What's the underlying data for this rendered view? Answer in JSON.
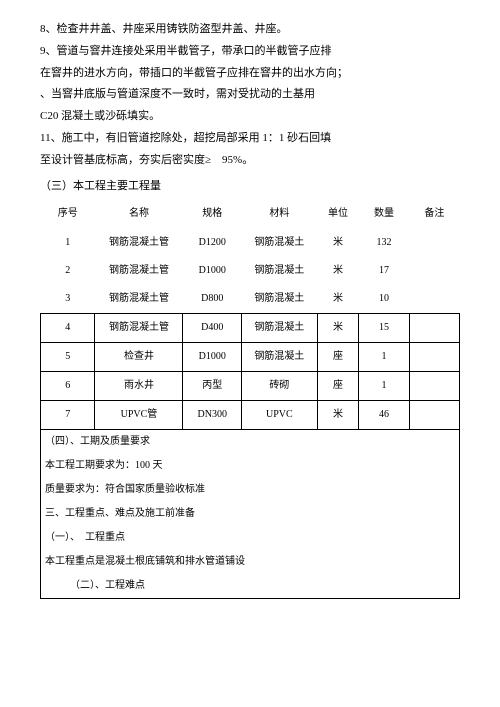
{
  "paragraphs": {
    "p8": "8、检查井井盖、井座采用铸铁防盗型井盖、井座。",
    "p9a": "9、管道与窨井连接处采用半截管子，带承口的半截管子应排",
    "p9b": "在窨井的进水方向，带插口的半截管子应排在窨井的出水方向；",
    "p9c": "、当窨井底版与管道深度不一致时，需对受扰动的土基用",
    "p9d": "C20 混凝土或沙砾填实。",
    "p11a": "11、施工中，有旧管道挖除处，超挖局部采用 1：1 砂石回填",
    "p11b": "至设计管基底标高，夯实后密实度≥　95%。"
  },
  "section3_title": "（三）本工程主要工程量",
  "table": {
    "headers": [
      "序号",
      "名称",
      "规格",
      "材料",
      "单位",
      "数量",
      "备注"
    ],
    "rows": [
      [
        "1",
        "钢筋混凝土管",
        "D1200",
        "钢筋混凝土",
        "米",
        "132",
        ""
      ],
      [
        "2",
        "钢筋混凝土管",
        "D1000",
        "钢筋混凝土",
        "米",
        "17",
        ""
      ],
      [
        "3",
        "钢筋混凝土管",
        "D800",
        "钢筋混凝土",
        "米",
        "10",
        ""
      ],
      [
        "4",
        "钢筋混凝土管",
        "D400",
        "钢筋混凝土",
        "米",
        "15",
        ""
      ],
      [
        "5",
        "检查井",
        "D1000",
        "钢筋混凝土",
        "座",
        "1",
        ""
      ],
      [
        "6",
        "雨水井",
        "丙型",
        "砖砌",
        "座",
        "1",
        ""
      ],
      [
        "7",
        "UPVC管",
        "DN300",
        "UPVC",
        "米",
        "46",
        ""
      ]
    ]
  },
  "overlay": {
    "l1": "（四）、工期及质量要求",
    "l2": "本工程工期要求为：100 天",
    "l3": "质量要求为：符合国家质量验收标准",
    "l4": "三、工程重点、难点及施工前准备",
    "l5": "（一）、　工程重点",
    "l6": "本工程重点是混凝土根底铺筑和排水管道铺设",
    "l7": "　　　（二）、工程难点"
  }
}
